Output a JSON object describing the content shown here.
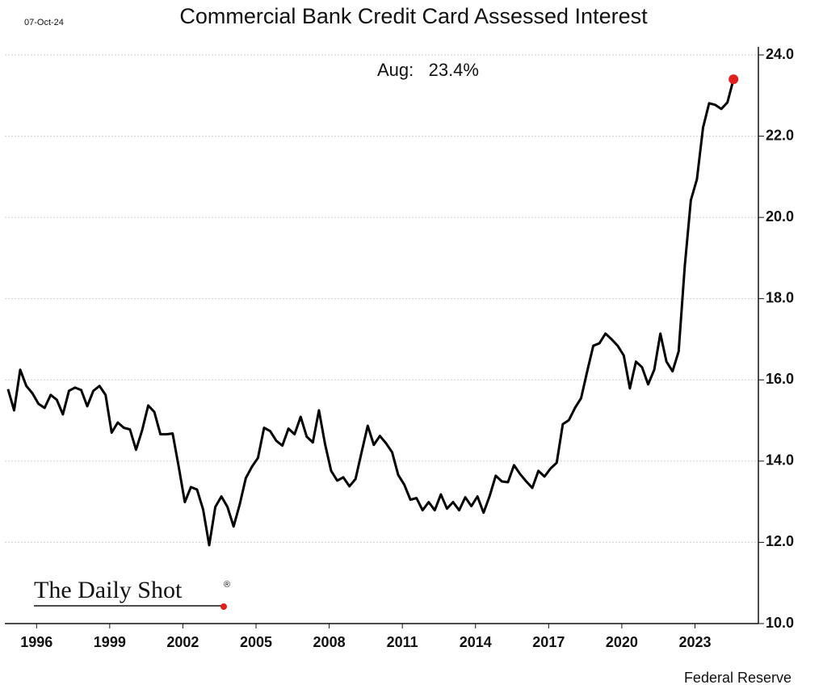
{
  "chart_data": {
    "type": "line",
    "date": "07-Oct-24",
    "title": "Commercial Bank Credit Card Assessed Interest",
    "annotation": "Aug:   23.4%",
    "source": "Federal Reserve",
    "logo": "The Daily Shot",
    "logo_mark": "®",
    "x": [
      1994.83,
      1995.08,
      1995.33,
      1995.58,
      1995.83,
      1996.08,
      1996.33,
      1996.58,
      1996.83,
      1997.08,
      1997.33,
      1997.58,
      1997.83,
      1998.08,
      1998.33,
      1998.58,
      1998.83,
      1999.08,
      1999.33,
      1999.58,
      1999.83,
      2000.08,
      2000.33,
      2000.58,
      2000.83,
      2001.08,
      2001.33,
      2001.58,
      2001.83,
      2002.08,
      2002.33,
      2002.58,
      2002.83,
      2003.08,
      2003.33,
      2003.58,
      2003.83,
      2004.08,
      2004.33,
      2004.58,
      2004.83,
      2005.08,
      2005.33,
      2005.58,
      2005.83,
      2006.08,
      2006.33,
      2006.58,
      2006.83,
      2007.08,
      2007.33,
      2007.58,
      2007.83,
      2008.08,
      2008.33,
      2008.58,
      2008.83,
      2009.08,
      2009.33,
      2009.58,
      2009.83,
      2010.08,
      2010.33,
      2010.58,
      2010.83,
      2011.08,
      2011.33,
      2011.58,
      2011.83,
      2012.08,
      2012.33,
      2012.58,
      2012.83,
      2013.08,
      2013.33,
      2013.58,
      2013.83,
      2014.08,
      2014.33,
      2014.58,
      2014.83,
      2015.08,
      2015.33,
      2015.58,
      2015.83,
      2016.08,
      2016.33,
      2016.58,
      2016.83,
      2017.08,
      2017.33,
      2017.58,
      2017.83,
      2018.08,
      2018.33,
      2018.58,
      2018.83,
      2019.08,
      2019.33,
      2019.58,
      2019.83,
      2020.08,
      2020.33,
      2020.58,
      2020.83,
      2021.08,
      2021.33,
      2021.58,
      2021.83,
      2022.08,
      2022.33,
      2022.58,
      2022.83,
      2023.08,
      2023.33,
      2023.58,
      2023.83,
      2024.08,
      2024.33,
      2024.58
    ],
    "series": [
      {
        "color": "#000000",
        "marker_color": "#e0201f",
        "values": [
          15.77,
          15.25,
          16.25,
          15.85,
          15.67,
          15.41,
          15.31,
          15.63,
          15.51,
          15.15,
          15.73,
          15.81,
          15.75,
          15.35,
          15.73,
          15.85,
          15.63,
          14.7,
          14.95,
          14.82,
          14.78,
          14.28,
          14.76,
          15.37,
          15.21,
          14.66,
          14.66,
          14.68,
          13.86,
          12.99,
          13.36,
          13.3,
          12.81,
          11.93,
          12.87,
          13.13,
          12.87,
          12.39,
          12.93,
          13.58,
          13.86,
          14.08,
          14.82,
          14.74,
          14.5,
          14.38,
          14.8,
          14.66,
          15.09,
          14.6,
          14.46,
          15.25,
          14.42,
          13.76,
          13.52,
          13.6,
          13.38,
          13.56,
          14.22,
          14.87,
          14.4,
          14.62,
          14.44,
          14.22,
          13.66,
          13.42,
          13.05,
          13.09,
          12.79,
          12.99,
          12.79,
          13.18,
          12.83,
          12.99,
          12.79,
          13.11,
          12.89,
          13.13,
          12.73,
          13.14,
          13.64,
          13.5,
          13.48,
          13.9,
          13.68,
          13.5,
          13.34,
          13.76,
          13.62,
          13.82,
          13.96,
          14.91,
          15.01,
          15.31,
          15.55,
          16.21,
          16.84,
          16.9,
          17.14,
          17.0,
          16.84,
          16.6,
          15.79,
          16.45,
          16.31,
          15.89,
          16.25,
          17.14,
          16.45,
          16.21,
          16.7,
          18.79,
          20.42,
          20.94,
          22.21,
          22.81,
          22.77,
          22.67,
          22.83,
          23.4
        ]
      }
    ],
    "xlim": [
      1994.7,
      2025.6
    ],
    "xticks": [
      1996,
      1999,
      2002,
      2005,
      2008,
      2011,
      2014,
      2017,
      2020,
      2023
    ],
    "ylim": [
      10,
      24
    ],
    "yticks": [
      {
        "value": 10,
        "label": "10.0"
      },
      {
        "value": 12,
        "label": "12.0"
      },
      {
        "value": 14,
        "label": "14.0"
      },
      {
        "value": 16,
        "label": "16.0"
      },
      {
        "value": 18,
        "label": "18.0"
      },
      {
        "value": 20,
        "label": "20.0"
      },
      {
        "value": 22,
        "label": "22.0"
      },
      {
        "value": 24,
        "label": "24.0"
      }
    ],
    "grid": true
  }
}
